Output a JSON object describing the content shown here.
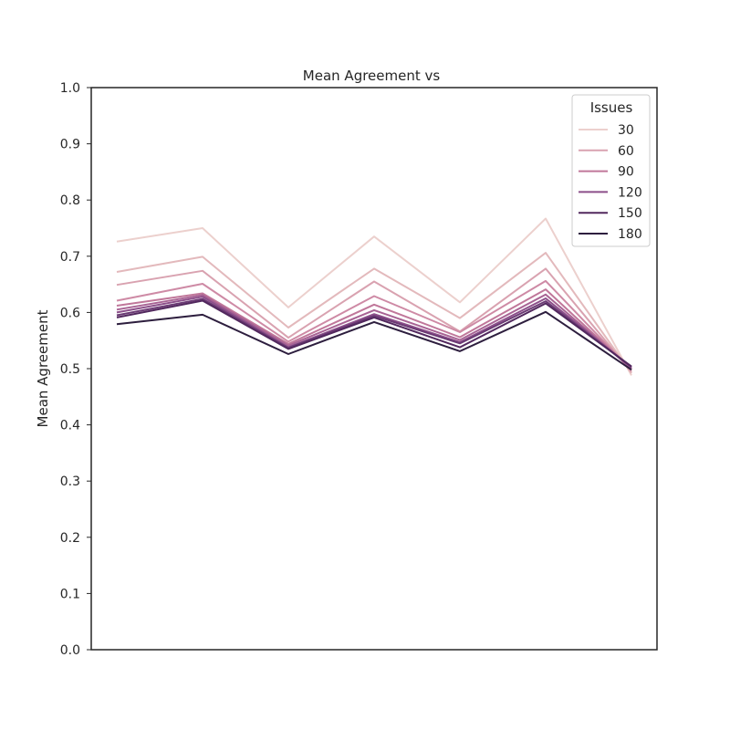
{
  "chart_data": {
    "type": "line",
    "title": "Mean Agreement vs",
    "xlabel": "",
    "ylabel": "Mean Agreement",
    "ylim": [
      0.0,
      1.0
    ],
    "y_ticks": [
      "0.0",
      "0.1",
      "0.2",
      "0.3",
      "0.4",
      "0.5",
      "0.6",
      "0.7",
      "0.8",
      "0.9",
      "1.0"
    ],
    "x_tick_labels_visible": false,
    "grid": false,
    "legend": {
      "title": "Issues",
      "placement": "top-right"
    },
    "x": [
      0,
      1,
      2,
      3,
      4,
      5,
      6
    ],
    "series": [
      {
        "name": "30",
        "color": "#ecd0cd",
        "values": [
          0.726,
          0.75,
          0.609,
          0.735,
          0.618,
          0.767,
          0.488
        ]
      },
      {
        "name": "",
        "color": "#e3b9bc",
        "values": [
          0.672,
          0.699,
          0.573,
          0.678,
          0.59,
          0.706,
          0.492
        ]
      },
      {
        "name": "60",
        "color": "#d9a2b0",
        "values": [
          0.649,
          0.674,
          0.555,
          0.655,
          0.566,
          0.678,
          0.494
        ]
      },
      {
        "name": "",
        "color": "#ce8aa5",
        "values": [
          0.621,
          0.651,
          0.548,
          0.629,
          0.565,
          0.656,
          0.497
        ]
      },
      {
        "name": "90",
        "color": "#c0779a",
        "values": [
          0.612,
          0.634,
          0.544,
          0.614,
          0.556,
          0.641,
          0.499
        ]
      },
      {
        "name": "",
        "color": "#a86394",
        "values": [
          0.605,
          0.631,
          0.541,
          0.604,
          0.551,
          0.632,
          0.5
        ]
      },
      {
        "name": "120",
        "color": "#8c4f8a",
        "values": [
          0.6,
          0.628,
          0.538,
          0.597,
          0.547,
          0.625,
          0.502
        ]
      },
      {
        "name": "",
        "color": "#6b3a74",
        "values": [
          0.595,
          0.624,
          0.537,
          0.594,
          0.545,
          0.62,
          0.503
        ]
      },
      {
        "name": "150",
        "color": "#52285e",
        "values": [
          0.591,
          0.621,
          0.535,
          0.591,
          0.538,
          0.616,
          0.504
        ]
      },
      {
        "name": "180",
        "color": "#2d1e3e",
        "values": [
          0.579,
          0.596,
          0.526,
          0.583,
          0.531,
          0.601,
          0.498
        ]
      }
    ]
  }
}
